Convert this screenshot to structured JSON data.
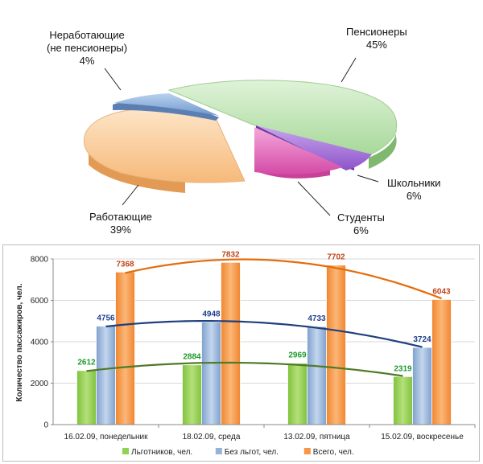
{
  "colors": {
    "pensioners": "#b5dfa9",
    "schoolkids": "#a874d8",
    "students": "#e063b8",
    "working": "#f9c590",
    "nonworking": "#8db4e2",
    "lgotniki": "#92d050",
    "bez_lgot": "#95b3d7",
    "vsego": "#f79646",
    "lgotniki_label": "#1e9a2c",
    "bez_lgot_label": "#1f3f8f",
    "vsego_label": "#c0441a",
    "trend_lgotniki": "#4f7a28",
    "trend_bez_lgot": "#1f3f7f",
    "trend_vsego": "#e46c0a"
  },
  "chart_data": [
    {
      "type": "pie",
      "slices": [
        {
          "name": "Пенсионеры",
          "label": "Пенсионеры",
          "value": 45,
          "percent_text": "45%",
          "color": "pensioners"
        },
        {
          "name": "Школьники",
          "label": "Школьники",
          "value": 6,
          "percent_text": "6%",
          "color": "schoolkids"
        },
        {
          "name": "Студенты",
          "label": "Студенты",
          "value": 6,
          "percent_text": "6%",
          "color": "students"
        },
        {
          "name": "Работающие",
          "label": "Работающие",
          "value": 39,
          "percent_text": "39%",
          "color": "working"
        },
        {
          "name": "Неработающие (не пенсионеры)",
          "label_line1": "Неработающие",
          "label_line2": "(не пенсионеры)",
          "value": 4,
          "percent_text": "4%",
          "color": "nonworking"
        }
      ]
    },
    {
      "type": "bar",
      "ylabel": "Количество пассажиров, чел.",
      "ylim": [
        0,
        8000
      ],
      "yticks": [
        "0",
        "2000",
        "4000",
        "6000",
        "8000"
      ],
      "categories": [
        "16.02.09, понедельник",
        "18.02.09, среда",
        "13.02.09, пятница",
        "15.02.09, воскресенье"
      ],
      "series": [
        {
          "name": "Льготников, чел.",
          "values": [
            2612,
            2884,
            2969,
            2319
          ],
          "color": "lgotniki",
          "label_color": "lgotniki_label",
          "trend_color": "trend_lgotniki"
        },
        {
          "name": "Без льгот, чел.",
          "values": [
            4756,
            4948,
            4733,
            3724
          ],
          "color": "bez_lgot",
          "label_color": "bez_lgot_label",
          "trend_color": "trend_bez_lgot"
        },
        {
          "name": "Всего, чел.",
          "values": [
            7368,
            7832,
            7702,
            6043
          ],
          "color": "vsego",
          "label_color": "vsego_label",
          "trend_color": "trend_vsego"
        }
      ],
      "legend": "bottom",
      "trendlines": true
    }
  ]
}
